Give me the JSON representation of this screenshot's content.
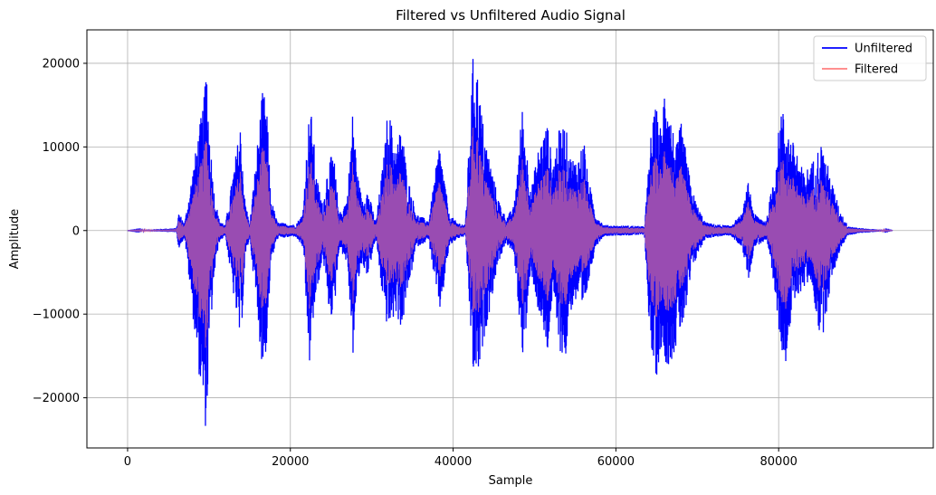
{
  "chart_data": {
    "type": "line",
    "title": "Filtered vs Unfiltered Audio Signal",
    "xlabel": "Sample",
    "ylabel": "Amplitude",
    "xlim": [
      -5000,
      99000
    ],
    "ylim": [
      -26000,
      24000
    ],
    "x_ticks": [
      0,
      20000,
      40000,
      60000,
      80000
    ],
    "x_tick_labels": [
      "0",
      "20000",
      "40000",
      "60000",
      "80000"
    ],
    "y_ticks": [
      -20000,
      -10000,
      0,
      10000,
      20000
    ],
    "y_tick_labels": [
      "−20000",
      "−10000",
      "0",
      "10000",
      "20000"
    ],
    "grid": true,
    "legend_position": "top-right",
    "total_samples": 94000,
    "series": [
      {
        "name": "Unfiltered",
        "color": "#0000ff",
        "envelope": {
          "x": [
            0,
            6000,
            6300,
            7000,
            9400,
            9700,
            10000,
            10600,
            11200,
            12000,
            13900,
            14400,
            15000,
            16600,
            17100,
            17600,
            18400,
            20000,
            20600,
            21500,
            22400,
            22800,
            23200,
            23700,
            24000,
            24600,
            25300,
            26000,
            27000,
            27700,
            28200,
            28800,
            29500,
            30500,
            31500,
            32000,
            33000,
            33700,
            34300,
            35500,
            37000,
            38300,
            38700,
            39500,
            40500,
            41500,
            42500,
            42900,
            43300,
            43800,
            44400,
            45500,
            46500,
            47500,
            48500,
            49000,
            49600,
            50500,
            51600,
            52200,
            53000,
            53800,
            54300,
            55200,
            56100,
            56500,
            57500,
            58500,
            60000,
            62000,
            63500,
            64300,
            64900,
            65600,
            66100,
            66700,
            67400,
            68000,
            68700,
            69200,
            70000,
            71000,
            72000,
            74000,
            75500,
            76300,
            77000,
            78500,
            79600,
            80300,
            81000,
            81500,
            82200,
            83000,
            84000,
            85200,
            86000,
            86500,
            87500,
            88500,
            90000,
            92000,
            94000
          ],
          "upper": [
            0,
            300,
            2200,
            900,
            16000,
            21000,
            13000,
            5000,
            1500,
            600,
            13000,
            4000,
            700,
            17000,
            15000,
            4000,
            1000,
            800,
            700,
            2000,
            15500,
            12000,
            6500,
            4500,
            3000,
            8000,
            9500,
            2000,
            4000,
            15000,
            7000,
            4000,
            5000,
            1000,
            9000,
            15000,
            10000,
            13000,
            7000,
            2000,
            1200,
            10500,
            8000,
            2000,
            1000,
            700,
            22000,
            20000,
            16000,
            12000,
            9000,
            4000,
            1500,
            3000,
            15000,
            10000,
            5000,
            10000,
            13000,
            8000,
            12000,
            13000,
            9000,
            8500,
            11000,
            7000,
            2000,
            700,
            600,
            600,
            500,
            11500,
            15000,
            12000,
            20000,
            14000,
            10000,
            13000,
            9000,
            5500,
            3000,
            1000,
            800,
            600,
            2000,
            6000,
            2000,
            1200,
            8000,
            15000,
            13000,
            11000,
            10000,
            7000,
            8000,
            10500,
            8000,
            6000,
            2500,
            600,
            300,
            150,
            0
          ],
          "lower": [
            0,
            -200,
            -2200,
            -800,
            -23000,
            -24000,
            -15000,
            -6000,
            -1500,
            -600,
            -14000,
            -4000,
            -700,
            -17000,
            -14000,
            -4000,
            -1000,
            -800,
            -700,
            -2000,
            -17000,
            -11000,
            -8000,
            -5000,
            -3000,
            -9000,
            -11000,
            -2000,
            -4000,
            -15000,
            -7000,
            -4000,
            -5500,
            -1000,
            -9500,
            -12000,
            -10000,
            -12000,
            -8000,
            -2000,
            -1200,
            -10000,
            -8000,
            -2000,
            -1000,
            -700,
            -18000,
            -17000,
            -17500,
            -13000,
            -10000,
            -4000,
            -1500,
            -3000,
            -15000,
            -12000,
            -5000,
            -10000,
            -15000,
            -8000,
            -14000,
            -16000,
            -10000,
            -8500,
            -11000,
            -7000,
            -2000,
            -700,
            -600,
            -600,
            -500,
            -15000,
            -18000,
            -14000,
            -16000,
            -16000,
            -14000,
            -12000,
            -10000,
            -5500,
            -3000,
            -1000,
            -800,
            -600,
            -2000,
            -6000,
            -2000,
            -1200,
            -8500,
            -14000,
            -16000,
            -11000,
            -8000,
            -7000,
            -6000,
            -14000,
            -9000,
            -6000,
            -2500,
            -600,
            -300,
            -150,
            0
          ]
        }
      },
      {
        "name": "Filtered",
        "color": "#ff7f7f",
        "envelope_scale": 0.6
      }
    ]
  }
}
